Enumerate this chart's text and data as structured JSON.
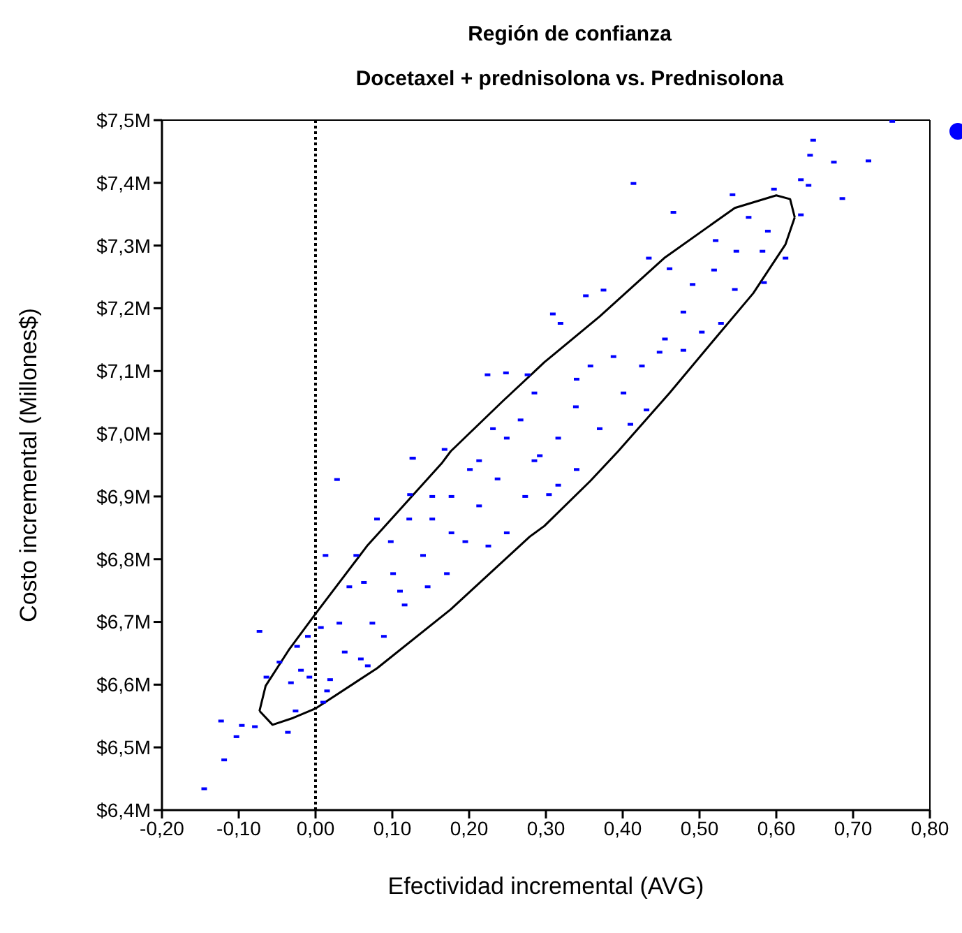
{
  "chart_data": {
    "type": "scatter",
    "title": "Región de confianza",
    "subtitle": "Docetaxel + prednisolona vs. Prednisolona",
    "xlabel": "Efectividad incremental (AVG)",
    "ylabel": "Costo incremental (Millones$)",
    "xlim": [
      -0.2,
      0.8
    ],
    "ylim": [
      6.4,
      7.5
    ],
    "xticks": [
      {
        "value": -0.2,
        "label": "-0,20"
      },
      {
        "value": -0.1,
        "label": "-0,10"
      },
      {
        "value": 0,
        "label": "0,00"
      },
      {
        "value": 0.1,
        "label": "0,10"
      },
      {
        "value": 0.2,
        "label": "0,20"
      },
      {
        "value": 0.3,
        "label": "0,30"
      },
      {
        "value": 0.4,
        "label": "0,40"
      },
      {
        "value": 0.5,
        "label": "0,50"
      },
      {
        "value": 0.6,
        "label": "0,60"
      },
      {
        "value": 0.7,
        "label": "0,70"
      },
      {
        "value": 0.8,
        "label": "0,80"
      }
    ],
    "yticks": [
      {
        "value": 6.4,
        "label": "$6,4M"
      },
      {
        "value": 6.5,
        "label": "$6,5M"
      },
      {
        "value": 6.6,
        "label": "$6,6M"
      },
      {
        "value": 6.7,
        "label": "$6,7M"
      },
      {
        "value": 6.8,
        "label": "$6,8M"
      },
      {
        "value": 6.9,
        "label": "$6,9M"
      },
      {
        "value": 7.0,
        "label": "$7,0M"
      },
      {
        "value": 7.1,
        "label": "$7,1M"
      },
      {
        "value": 7.2,
        "label": "$7,2M"
      },
      {
        "value": 7.3,
        "label": "$7,3M"
      },
      {
        "value": 7.4,
        "label": "$7,4M"
      },
      {
        "value": 7.5,
        "label": "$7,5M"
      }
    ],
    "grid": false,
    "ref_lines": [
      {
        "axis": "x",
        "value": 0,
        "color": "#000000",
        "line_style": "dotted"
      }
    ],
    "series": [
      {
        "type": "scatter",
        "color": "#0000ff",
        "marker": "square",
        "x": [
          0.751,
          0.648,
          0.644,
          0.675,
          0.72,
          0.632,
          0.642,
          0.686,
          0.632,
          0.414,
          0.543,
          0.597,
          0.466,
          0.612,
          0.434,
          0.564,
          0.589,
          0.521,
          0.582,
          0.548,
          0.352,
          0.375,
          0.519,
          0.584,
          0.546,
          0.461,
          0.491,
          0.309,
          0.319,
          0.528,
          0.503,
          0.479,
          0.448,
          0.41,
          0.431,
          0.388,
          0.401,
          0.358,
          0.425,
          0.339,
          0.37,
          0.316,
          0.292,
          0.479,
          0.455,
          0.34,
          0.224,
          0.248,
          0.276,
          0.168,
          0.127,
          0.231,
          0.285,
          0.267,
          0.249,
          0.028,
          -0.073,
          -0.123,
          -0.096,
          -0.103,
          -0.119,
          -0.145,
          -0.079,
          -0.036,
          -0.026,
          -0.064,
          -0.047,
          -0.032,
          -0.019,
          -0.024,
          -0.01,
          -0.008,
          0.013,
          0.007,
          0.019,
          0.015,
          0.01,
          0.031,
          0.038,
          0.059,
          0.068,
          0.044,
          0.053,
          0.08,
          0.063,
          0.074,
          0.089,
          0.098,
          0.122,
          0.123,
          0.126,
          0.101,
          0.116,
          0.14,
          0.152,
          0.171,
          0.177,
          0.195,
          0.213,
          0.201,
          0.237,
          0.249,
          0.273,
          0.285,
          0.225,
          0.11,
          0.146,
          0.177,
          0.152,
          0.213,
          0.34,
          0.316,
          0.304
        ],
        "values": [
          7.498,
          7.468,
          7.444,
          7.433,
          7.435,
          7.405,
          7.396,
          7.375,
          7.349,
          7.399,
          7.381,
          7.39,
          7.353,
          7.28,
          7.28,
          7.345,
          7.323,
          7.308,
          7.291,
          7.291,
          7.22,
          7.229,
          7.261,
          7.241,
          7.23,
          7.263,
          7.238,
          7.191,
          7.176,
          7.176,
          7.162,
          7.133,
          7.13,
          7.015,
          7.038,
          7.123,
          7.065,
          7.108,
          7.108,
          7.043,
          7.008,
          6.993,
          6.965,
          7.194,
          7.151,
          7.087,
          7.094,
          7.097,
          7.094,
          6.975,
          6.961,
          7.008,
          7.065,
          7.022,
          6.993,
          6.927,
          6.685,
          6.542,
          6.535,
          6.517,
          6.48,
          6.434,
          6.533,
          6.524,
          6.558,
          6.612,
          6.636,
          6.603,
          6.623,
          6.661,
          6.677,
          6.612,
          6.806,
          6.691,
          6.608,
          6.59,
          6.572,
          6.698,
          6.652,
          6.641,
          6.63,
          6.756,
          6.806,
          6.864,
          6.763,
          6.698,
          6.677,
          6.828,
          6.864,
          6.903,
          6.961,
          6.777,
          6.727,
          6.806,
          6.864,
          6.777,
          6.9,
          6.828,
          6.885,
          6.943,
          6.928,
          6.842,
          6.9,
          6.957,
          6.821,
          6.749,
          6.756,
          6.842,
          6.9,
          6.957,
          6.943,
          6.918,
          6.903
        ]
      },
      {
        "type": "line",
        "color": "#000000",
        "marker": "none",
        "line_style": "solid",
        "x": [
          -0.073,
          -0.065,
          -0.035,
          0.0,
          0.067,
          0.165,
          0.176,
          0.243,
          0.298,
          0.37,
          0.455,
          0.546,
          0.6,
          0.618,
          0.624
        ],
        "values": [
          6.558,
          6.598,
          6.655,
          6.713,
          6.821,
          6.954,
          6.972,
          7.051,
          7.114,
          7.187,
          7.281,
          7.36,
          7.38,
          7.374,
          7.345
        ]
      },
      {
        "type": "line",
        "color": "#000000",
        "marker": "none",
        "line_style": "solid",
        "x": [
          -0.073,
          -0.056,
          -0.029,
          0.0,
          0.08,
          0.176,
          0.279,
          0.298,
          0.358,
          0.394,
          0.461,
          0.515,
          0.57,
          0.612,
          0.624
        ],
        "values": [
          6.558,
          6.536,
          6.547,
          6.562,
          6.626,
          6.72,
          6.836,
          6.853,
          6.925,
          6.972,
          7.065,
          7.144,
          7.224,
          7.302,
          7.345
        ]
      }
    ]
  }
}
